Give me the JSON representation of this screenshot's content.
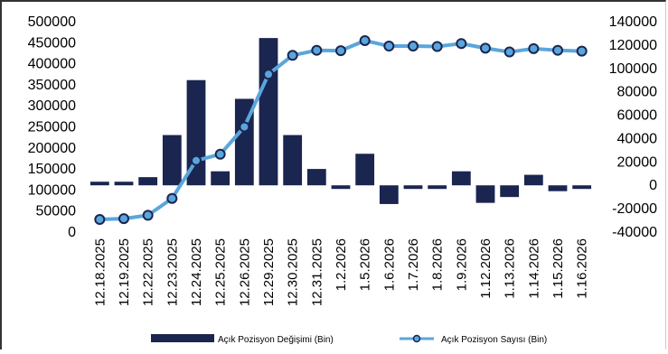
{
  "chart_data": {
    "type": "bar+line",
    "categories": [
      "12.18.2025",
      "12.19.2025",
      "12.22.2025",
      "12.23.2025",
      "12.24.2025",
      "12.25.2025",
      "12.26.2025",
      "12.29.2025",
      "12.30.2025",
      "12.31.2025",
      "1.2.2026",
      "1.5.2026",
      "1.6.2026",
      "1.7.2026",
      "1.8.2026",
      "1.9.2026",
      "1.12.2026",
      "1.13.2026",
      "1.14.2026",
      "1.15.2026",
      "1.16.2026"
    ],
    "y_left_ticks": [
      "500000",
      "450000",
      "400000",
      "350000",
      "300000",
      "250000",
      "200000",
      "150000",
      "100000",
      "50000",
      "0"
    ],
    "y_right_ticks": [
      "140000",
      "120000",
      "100000",
      "80000",
      "60000",
      "40000",
      "20000",
      "0",
      "-20000",
      "-40000"
    ],
    "y_left_range": [
      0,
      500000
    ],
    "y_right_range": [
      -40000,
      140000
    ],
    "series": [
      {
        "name": "Açık Pozisyon Değişimi (Bin)",
        "type": "bar",
        "axis": "right",
        "color": "#1a2550",
        "values": [
          3000,
          3000,
          7000,
          43000,
          90000,
          12000,
          74000,
          126000,
          43000,
          14000,
          -2000,
          27000,
          -16000,
          -1000,
          -2000,
          12000,
          -15000,
          -10000,
          9000,
          -5000,
          -3000
        ]
      },
      {
        "name": "Açık Pozisyon Sayısı (Bin)",
        "type": "line",
        "axis": "left",
        "color": "#5aa6dc",
        "marker_color": "#1a2550",
        "values": [
          30000,
          32000,
          40000,
          80000,
          170000,
          185000,
          250000,
          375000,
          420000,
          432000,
          431000,
          455000,
          442000,
          442000,
          441000,
          448000,
          437000,
          428000,
          436000,
          432000,
          430000
        ]
      }
    ],
    "legend_position": "bottom",
    "grid": false
  }
}
